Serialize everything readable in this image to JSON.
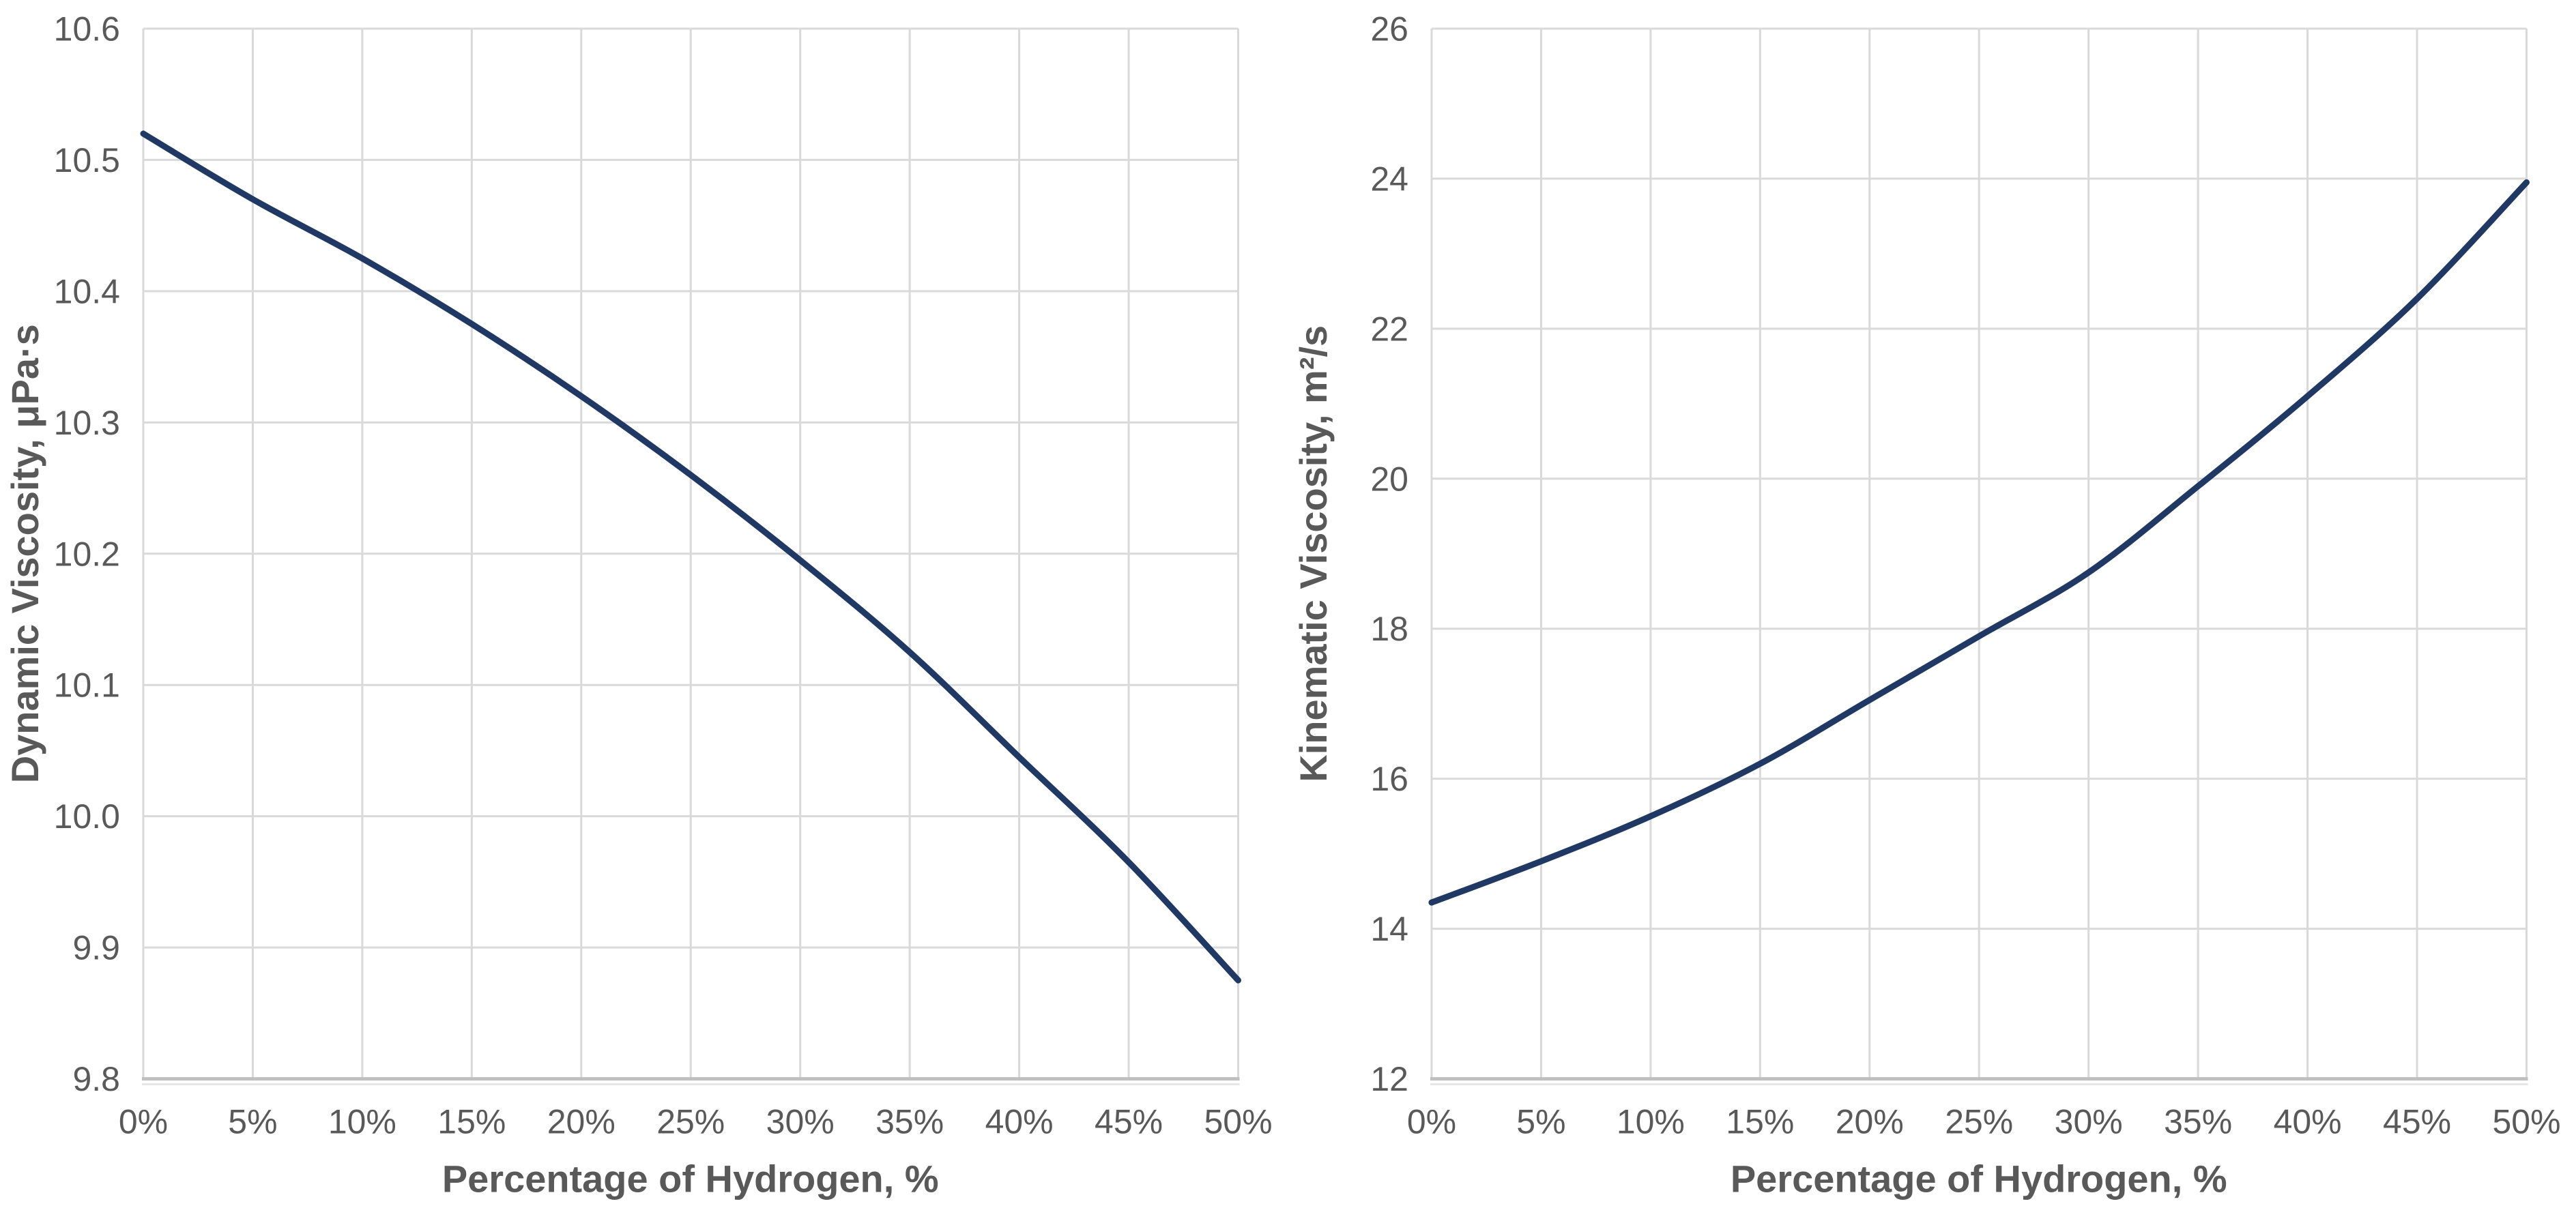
{
  "page": {
    "background": "#ffffff"
  },
  "styles": {
    "line_color": "#1f3864",
    "grid_color": "#d9d9d9",
    "axis_color": "#bfbfbf",
    "text_color": "#595959"
  },
  "chart_data": [
    {
      "type": "line",
      "title": "",
      "xlabel": "Percentage of Hydrogen, %",
      "ylabel": "Dynamic Viscosity, μPa·s",
      "xlim": [
        0,
        50
      ],
      "ylim": [
        9.8,
        10.6
      ],
      "grid": true,
      "legend": "none",
      "x": [
        0,
        5,
        10,
        15,
        20,
        25,
        30,
        35,
        40,
        45,
        50
      ],
      "x_tick_labels": [
        "0%",
        "5%",
        "10%",
        "15%",
        "20%",
        "25%",
        "30%",
        "35%",
        "40%",
        "45%",
        "50%"
      ],
      "y_tick_values": [
        9.8,
        9.9,
        10.0,
        10.1,
        10.2,
        10.3,
        10.4,
        10.5,
        10.6
      ],
      "y_tick_labels": [
        "9.8",
        "9.9",
        "10.0",
        "10.1",
        "10.2",
        "10.3",
        "10.4",
        "10.5",
        "10.6"
      ],
      "series": [
        {
          "name": "dynamic-viscosity",
          "values": [
            10.52,
            10.47,
            10.425,
            10.375,
            10.32,
            10.26,
            10.195,
            10.125,
            10.045,
            9.965,
            9.875
          ]
        }
      ]
    },
    {
      "type": "line",
      "title": "",
      "xlabel": "Percentage of Hydrogen, %",
      "ylabel": "Kinematic Viscosity, m²/s",
      "xlim": [
        0,
        50
      ],
      "ylim": [
        12,
        26
      ],
      "grid": true,
      "legend": "none",
      "x": [
        0,
        5,
        10,
        15,
        20,
        25,
        30,
        35,
        40,
        45,
        50
      ],
      "x_tick_labels": [
        "0%",
        "5%",
        "10%",
        "15%",
        "20%",
        "25%",
        "30%",
        "35%",
        "40%",
        "45%",
        "50%"
      ],
      "y_tick_values": [
        12,
        14,
        16,
        18,
        20,
        22,
        24,
        26
      ],
      "y_tick_labels": [
        "12",
        "14",
        "16",
        "18",
        "20",
        "22",
        "24",
        "26"
      ],
      "series": [
        {
          "name": "kinematic-viscosity",
          "values": [
            14.35,
            14.9,
            15.5,
            16.2,
            17.05,
            17.9,
            18.75,
            19.9,
            21.1,
            22.4,
            23.95
          ]
        }
      ]
    }
  ]
}
